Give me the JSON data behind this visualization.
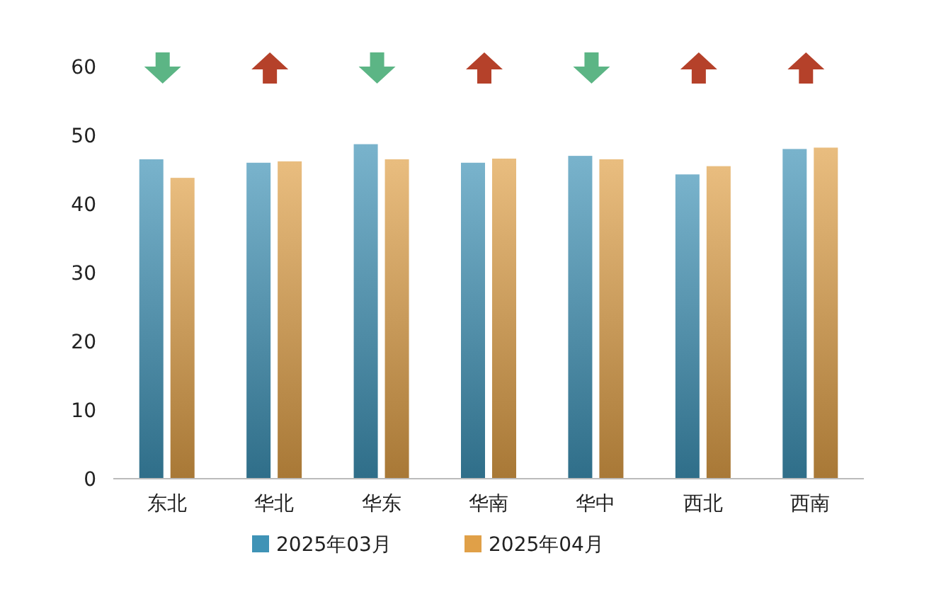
{
  "chart_data": {
    "type": "bar",
    "categories": [
      "东北",
      "华北",
      "华东",
      "华南",
      "华中",
      "西北",
      "西南"
    ],
    "series": [
      {
        "name": "2025年03月",
        "color": "#3f93b6",
        "values": [
          46.5,
          46.0,
          48.7,
          46.0,
          47.0,
          44.3,
          48.0
        ]
      },
      {
        "name": "2025年04月",
        "color": "#e0a048",
        "values": [
          43.8,
          46.2,
          46.5,
          46.6,
          46.5,
          45.5,
          48.2
        ]
      }
    ],
    "ylim": [
      0,
      60
    ],
    "yticks": [
      0,
      10,
      20,
      30,
      40,
      50,
      60
    ],
    "grid": false,
    "legend": "bottom"
  }
}
